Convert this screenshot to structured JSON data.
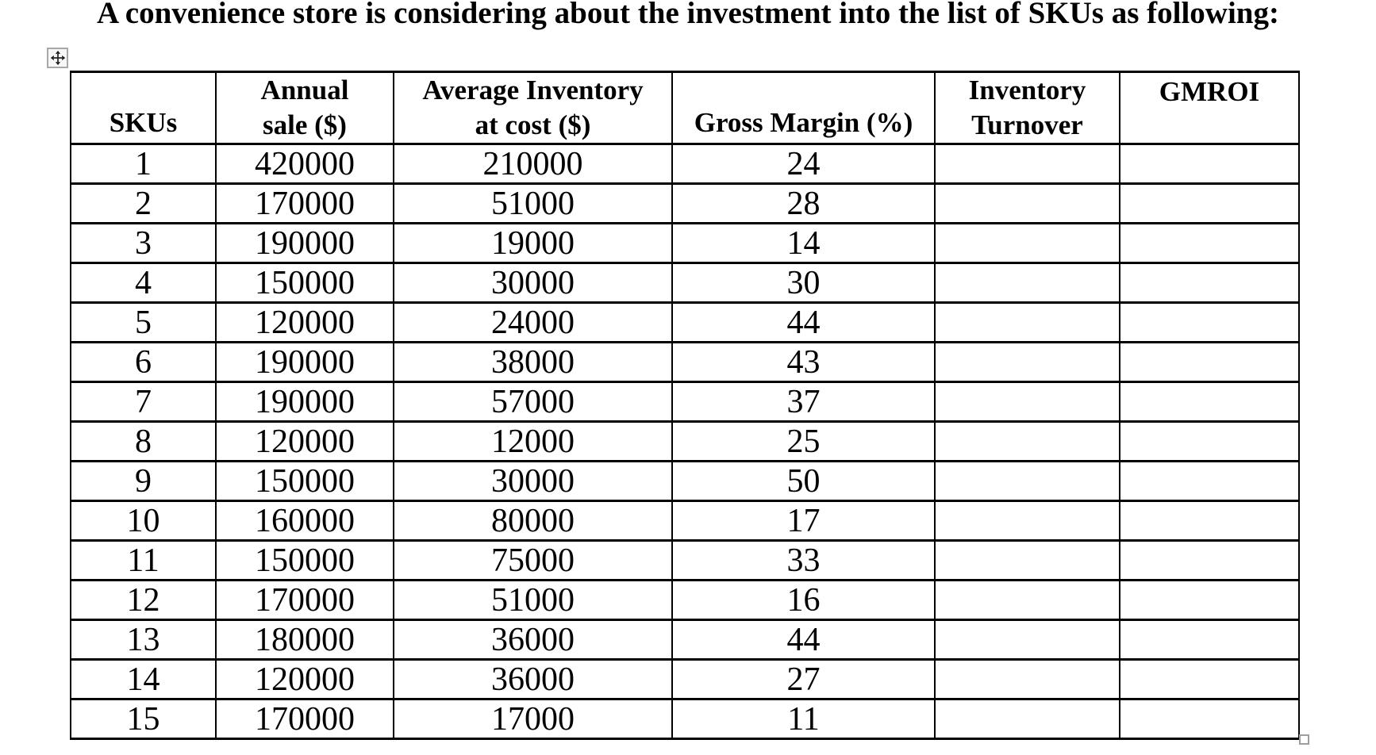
{
  "title": "A convenience store is considering about the investment into the list of SKUs as following:",
  "colors": {
    "background": "#ffffff",
    "text": "#000000",
    "table_border": "#000000",
    "handle_border": "#a8a8a8",
    "handle_fill": "#f7f7f7"
  },
  "handles": {
    "move_icon": "move-four-way-arrow",
    "resize_icon": "table-resize-square"
  },
  "table": {
    "columns": [
      {
        "key": "skus",
        "label": "SKUs"
      },
      {
        "key": "annual-sale",
        "label": "Annual\nsale ($)"
      },
      {
        "key": "avg-inventory-at-cost",
        "label": "Average Inventory\nat cost ($)"
      },
      {
        "key": "gross-margin",
        "label": "Gross Margin (%)"
      },
      {
        "key": "inventory-turnover",
        "label": "Inventory\nTurnover"
      },
      {
        "key": "gmroi",
        "label": "GMROI"
      }
    ],
    "rows": [
      [
        "1",
        "420000",
        "210000",
        "24",
        "",
        ""
      ],
      [
        "2",
        "170000",
        "51000",
        "28",
        "",
        ""
      ],
      [
        "3",
        "190000",
        "19000",
        "14",
        "",
        ""
      ],
      [
        "4",
        "150000",
        "30000",
        "30",
        "",
        ""
      ],
      [
        "5",
        "120000",
        "24000",
        "44",
        "",
        ""
      ],
      [
        "6",
        "190000",
        "38000",
        "43",
        "",
        ""
      ],
      [
        "7",
        "190000",
        "57000",
        "37",
        "",
        ""
      ],
      [
        "8",
        "120000",
        "12000",
        "25",
        "",
        ""
      ],
      [
        "9",
        "150000",
        "30000",
        "50",
        "",
        ""
      ],
      [
        "10",
        "160000",
        "80000",
        "17",
        "",
        ""
      ],
      [
        "11",
        "150000",
        "75000",
        "33",
        "",
        ""
      ],
      [
        "12",
        "170000",
        "51000",
        "16",
        "",
        ""
      ],
      [
        "13",
        "180000",
        "36000",
        "44",
        "",
        ""
      ],
      [
        "14",
        "120000",
        "36000",
        "27",
        "",
        ""
      ],
      [
        "15",
        "170000",
        "17000",
        "11",
        "",
        ""
      ]
    ]
  }
}
